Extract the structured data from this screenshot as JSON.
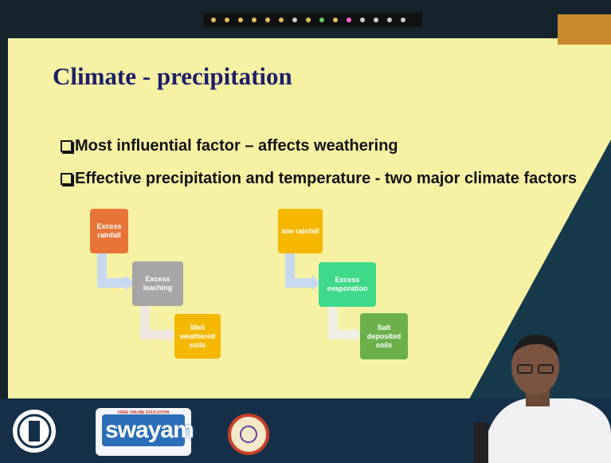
{
  "slide": {
    "title": "Climate - precipitation",
    "bullets": [
      "Most influential factor – affects weathering",
      "Effective precipitation and temperature - two major climate factors"
    ],
    "diagrams": [
      {
        "nodes": [
          "Excess rainfall",
          "Excess leaching",
          "Well weathered soils"
        ]
      },
      {
        "nodes": [
          "low rainfall",
          "Excess evaporation",
          "Salt deposited soils"
        ]
      }
    ]
  },
  "footer": {
    "logo_text": "swayam",
    "logo_tagline": "FREE ONLINE EDUCATION"
  }
}
